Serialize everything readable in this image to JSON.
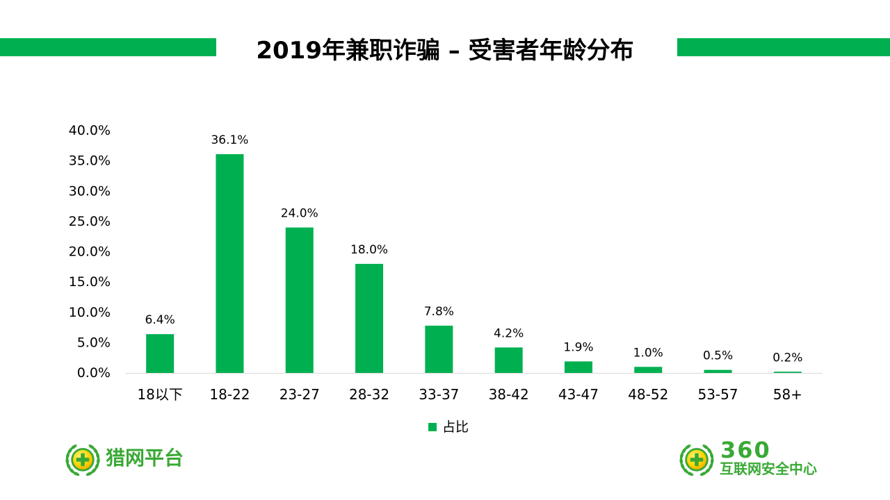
{
  "colors": {
    "accent": "#00B050",
    "logo_green": "#39A935",
    "text": "#000000",
    "axis_line": "#D9D9D9"
  },
  "chart_data": {
    "type": "bar",
    "title": "2019年兼职诈骗 – 受害者年龄分布",
    "xlabel": "",
    "ylabel": "",
    "categories": [
      "18以下",
      "18-22",
      "23-27",
      "28-32",
      "33-37",
      "38-42",
      "43-47",
      "48-52",
      "53-57",
      "58+"
    ],
    "series": [
      {
        "name": "占比",
        "values": [
          6.4,
          36.1,
          24.0,
          18.0,
          7.8,
          4.2,
          1.9,
          1.0,
          0.5,
          0.2
        ]
      }
    ],
    "data_labels": [
      "6.4%",
      "36.1%",
      "24.0%",
      "18.0%",
      "7.8%",
      "4.2%",
      "1.9%",
      "1.0%",
      "0.5%",
      "0.2%"
    ],
    "yticks": [
      "0.0%",
      "5.0%",
      "10.0%",
      "15.0%",
      "20.0%",
      "25.0%",
      "30.0%",
      "35.0%",
      "40.0%"
    ],
    "ylim": [
      0,
      40
    ],
    "grid": false,
    "legend": "bottom"
  },
  "logos": {
    "left": {
      "icon": "laurel-emblem-icon",
      "text": "猎网平台"
    },
    "right": {
      "icon": "laurel-emblem-icon",
      "brand": "360",
      "text": "互联网安全中心"
    }
  }
}
